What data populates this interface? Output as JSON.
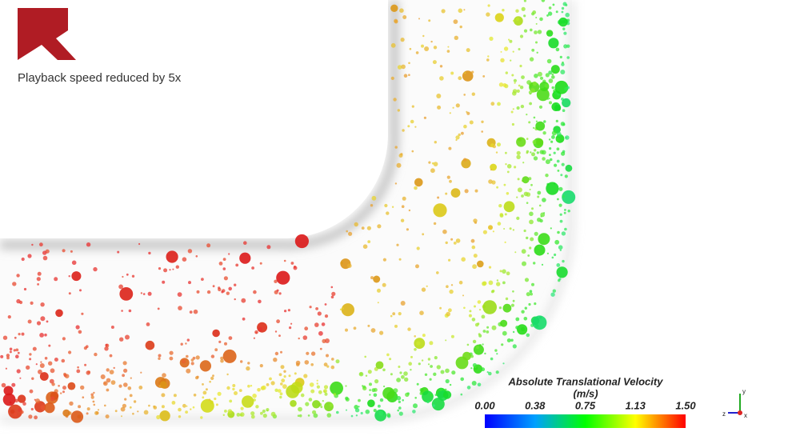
{
  "caption": "Playback speed reduced by 5x",
  "colorbar": {
    "title": "Absolute Translational Velocity",
    "unit": "(m/s)",
    "ticks": [
      "0.00",
      "0.38",
      "0.75",
      "1.13",
      "1.50"
    ]
  },
  "triad": {
    "y": "y",
    "z": "z",
    "x": "x"
  }
}
